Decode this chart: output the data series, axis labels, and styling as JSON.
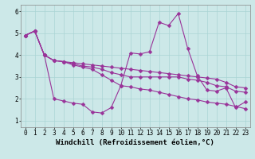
{
  "xlabel": "Windchill (Refroidissement éolien,°C)",
  "bg_color": "#cce8e8",
  "line_color": "#993399",
  "marker": "D",
  "marker_size": 2.5,
  "xlim": [
    -0.5,
    23.5
  ],
  "ylim": [
    0.7,
    6.3
  ],
  "yticks": [
    1,
    2,
    3,
    4,
    5,
    6
  ],
  "xticks": [
    0,
    1,
    2,
    3,
    4,
    5,
    6,
    7,
    8,
    9,
    10,
    11,
    12,
    13,
    14,
    15,
    16,
    17,
    18,
    19,
    20,
    21,
    22,
    23
  ],
  "series": [
    [
      4.9,
      5.1,
      4.0,
      2.0,
      1.9,
      1.8,
      1.75,
      1.4,
      1.35,
      1.6,
      2.6,
      4.1,
      4.05,
      4.15,
      5.5,
      5.35,
      5.9,
      4.3,
      3.05,
      2.4,
      2.35,
      2.5,
      1.6,
      1.85
    ],
    [
      4.9,
      5.1,
      4.0,
      3.75,
      3.7,
      3.65,
      3.6,
      3.55,
      3.5,
      3.45,
      3.4,
      3.35,
      3.3,
      3.25,
      3.2,
      3.15,
      3.1,
      3.05,
      3.0,
      2.95,
      2.9,
      2.75,
      2.55,
      2.5
    ],
    [
      4.9,
      5.1,
      4.0,
      3.75,
      3.7,
      3.6,
      3.5,
      3.45,
      3.35,
      3.2,
      3.1,
      3.0,
      3.0,
      3.0,
      3.0,
      3.0,
      3.0,
      2.9,
      2.85,
      2.75,
      2.6,
      2.55,
      2.35,
      2.3
    ],
    [
      4.9,
      5.1,
      4.0,
      3.75,
      3.7,
      3.55,
      3.45,
      3.35,
      3.1,
      2.85,
      2.6,
      2.55,
      2.45,
      2.4,
      2.3,
      2.2,
      2.1,
      2.0,
      1.95,
      1.85,
      1.8,
      1.75,
      1.65,
      1.55
    ]
  ],
  "grid_color": "#aad4d4",
  "tick_fontsize": 5.5,
  "label_fontsize": 6.5,
  "linewidth": 0.8
}
